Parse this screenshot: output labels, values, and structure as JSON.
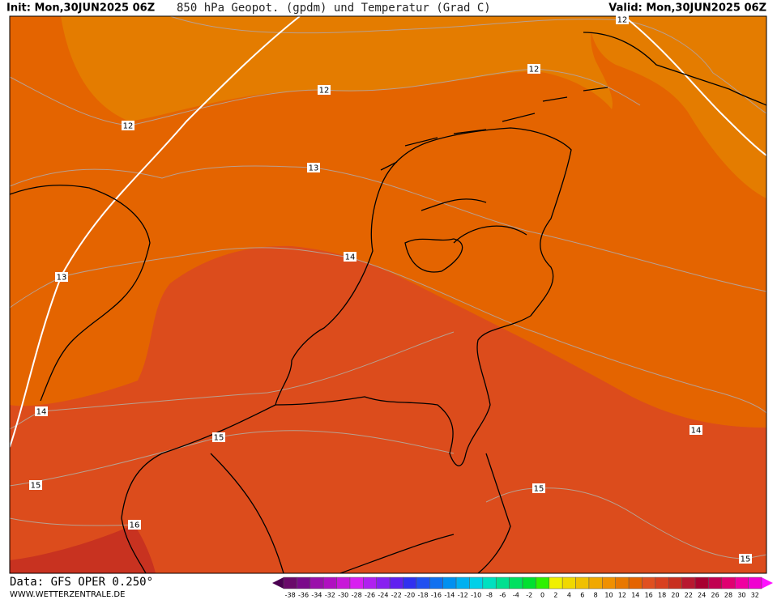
{
  "header": {
    "init": "Init: Mon,30JUN2025 06Z",
    "title": "850 hPa Geopot. (gpdm) und Temperatur (Grad C)",
    "valid": "Valid: Mon,30JUN2025 06Z"
  },
  "footer": {
    "data": "Data: GFS OPER 0.250°",
    "site": "WWW.WETTERZENTRALE.DE"
  },
  "contour_labels": [
    "12",
    "12",
    "12",
    "12",
    "13",
    "13",
    "14",
    "14",
    "14",
    "15",
    "15",
    "15",
    "15",
    "16"
  ],
  "colorbar": {
    "labels": [
      "-38",
      "-36",
      "-34",
      "-32",
      "-30",
      "-28",
      "-26",
      "-24",
      "-22",
      "-20",
      "-18",
      "-16",
      "-14",
      "-12",
      "-10",
      "-8",
      "-6",
      "-4",
      "-2",
      "0",
      "2",
      "4",
      "6",
      "8",
      "10",
      "12",
      "14",
      "16",
      "18",
      "20",
      "22",
      "24",
      "26",
      "28",
      "30",
      "32"
    ],
    "colors": [
      "#6a0a6a",
      "#7a0a8a",
      "#9a10aa",
      "#b010c0",
      "#c818d8",
      "#d820f0",
      "#b020f0",
      "#8820f0",
      "#6020f0",
      "#3030f0",
      "#2050f0",
      "#1070f0",
      "#0090f0",
      "#00b0f0",
      "#00d0e8",
      "#00e0c0",
      "#00e090",
      "#00e060",
      "#00e030",
      "#30f000",
      "#f0f000",
      "#f0d800",
      "#f0c000",
      "#f0a800",
      "#f09000",
      "#e87800",
      "#e46400",
      "#e05020",
      "#d84020",
      "#c83020",
      "#b81830",
      "#a80030",
      "#c00050",
      "#e00070",
      "#f000a0",
      "#f000d0"
    ]
  }
}
